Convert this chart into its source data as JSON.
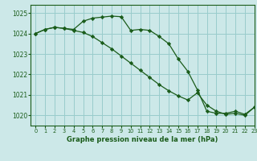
{
  "title": "Graphe pression niveau de la mer (hPa)",
  "background_color": "#cce8e8",
  "grid_color": "#99cccc",
  "line_color": "#1a5c1a",
  "marker_color": "#1a5c1a",
  "xlim": [
    -0.5,
    23
  ],
  "ylim": [
    1019.5,
    1025.4
  ],
  "yticks": [
    1020,
    1021,
    1022,
    1023,
    1024,
    1025
  ],
  "xticks": [
    0,
    1,
    2,
    3,
    4,
    5,
    6,
    7,
    8,
    9,
    10,
    11,
    12,
    13,
    14,
    15,
    16,
    17,
    18,
    19,
    20,
    21,
    22,
    23
  ],
  "series1": [
    1024.0,
    1024.2,
    1024.3,
    1024.25,
    1024.2,
    1024.6,
    1024.75,
    1024.8,
    1024.85,
    1024.82,
    1024.15,
    1024.2,
    1024.15,
    1023.85,
    1023.5,
    1022.75,
    1022.15,
    1021.25,
    1020.2,
    1020.1,
    1020.1,
    1020.2,
    1020.05,
    1020.4
  ],
  "series2": [
    1024.0,
    1024.2,
    1024.3,
    1024.25,
    1024.15,
    1024.05,
    1023.85,
    1023.55,
    1023.25,
    1022.9,
    1022.55,
    1022.2,
    1021.85,
    1021.5,
    1021.2,
    1020.95,
    1020.75,
    1021.1,
    1020.5,
    1020.2,
    1020.05,
    1020.1,
    1020.0,
    1020.4
  ]
}
